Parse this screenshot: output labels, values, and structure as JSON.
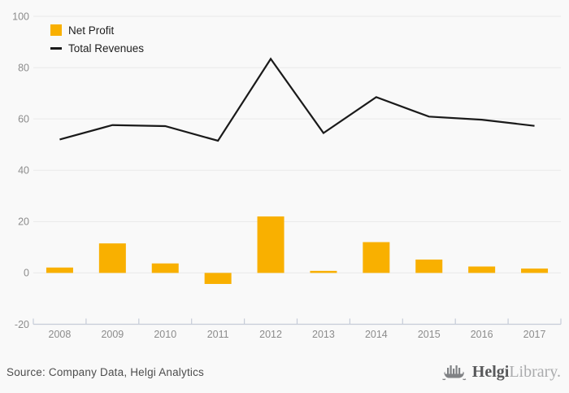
{
  "chart_data": {
    "type": "combo",
    "categories": [
      "2008",
      "2009",
      "2010",
      "2011",
      "2012",
      "2013",
      "2014",
      "2015",
      "2016",
      "2017"
    ],
    "series": [
      {
        "name": "Net Profit",
        "type": "bar",
        "color": "#f9b000",
        "values": [
          2.1,
          11.5,
          3.7,
          -4.3,
          22,
          0.8,
          12,
          5.2,
          2.5,
          1.7
        ]
      },
      {
        "name": "Total Revenues",
        "type": "line",
        "color": "#1a1a1a",
        "values": [
          52,
          57.6,
          57.2,
          51.5,
          83.4,
          54.5,
          68.5,
          60.9,
          59.7,
          57.3
        ]
      }
    ],
    "title": "",
    "xlabel": "",
    "ylabel": "",
    "ylim": [
      -20,
      100
    ],
    "yticks": [
      100,
      80,
      60,
      40,
      20,
      0,
      -20
    ],
    "grid": "horizontal",
    "legend_position": "top-left"
  },
  "colors": {
    "background": "#f9f9f9",
    "gridline": "#e9e9e9",
    "axis": "#c6ccd8",
    "tick_label": "#8c8c8c",
    "source_text": "#4d4d4d",
    "logo_dark": "#58595b",
    "logo_light": "#aaabad"
  },
  "footer": {
    "source": "Source: Company Data, Helgi Analytics",
    "logo": {
      "brand_bold": "Helgi",
      "brand_light": "Library."
    }
  }
}
